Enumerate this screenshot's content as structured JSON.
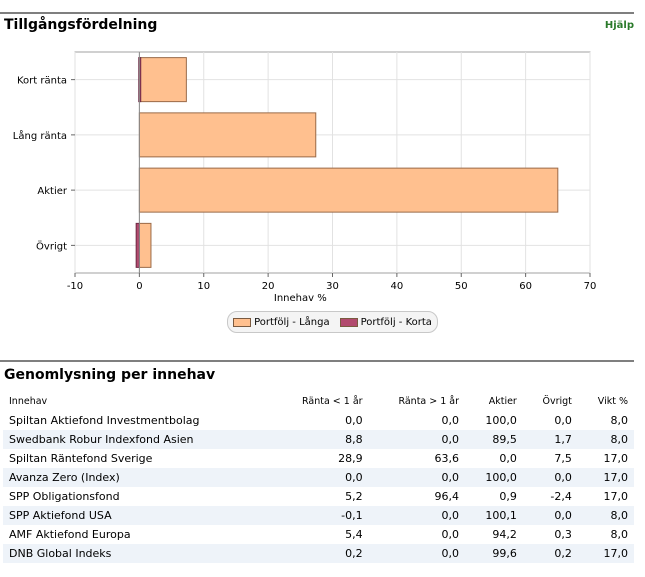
{
  "allocation": {
    "title": "Tillgångsfördelning",
    "help_label": "Hjälp"
  },
  "chart_data": {
    "type": "bar",
    "orientation": "horizontal",
    "categories": [
      "Kort ränta",
      "Lång ränta",
      "Aktier",
      "Övrigt"
    ],
    "series": [
      {
        "name": "Portfölj - Långa",
        "values": [
          7.3,
          27.4,
          65.0,
          1.8
        ],
        "color": "#ffc08f"
      },
      {
        "name": "Portfölj - Korta",
        "values": [
          -0.1,
          0.0,
          0.0,
          -0.5
        ],
        "color": "#b24a6e"
      }
    ],
    "xlabel": "Innehav %",
    "xlim": [
      -10,
      70
    ],
    "xticks": [
      -10,
      0,
      10,
      20,
      30,
      40,
      50,
      60,
      70
    ],
    "grid": true,
    "legend": "bottom"
  },
  "holdings": {
    "title": "Genomlysning per innehav",
    "columns": [
      "Innehav",
      "Ränta < 1 år",
      "Ränta > 1 år",
      "Aktier",
      "Övrigt",
      "Vikt %"
    ],
    "rows": [
      [
        "Spiltan Aktiefond Investmentbolag",
        "0,0",
        "0,0",
        "100,0",
        "0,0",
        "8,0"
      ],
      [
        "Swedbank Robur Indexfond Asien",
        "8,8",
        "0,0",
        "89,5",
        "1,7",
        "8,0"
      ],
      [
        "Spiltan Räntefond Sverige",
        "28,9",
        "63,6",
        "0,0",
        "7,5",
        "17,0"
      ],
      [
        "Avanza Zero (Index)",
        "0,0",
        "0,0",
        "100,0",
        "0,0",
        "17,0"
      ],
      [
        "SPP Obligationsfond",
        "5,2",
        "96,4",
        "0,9",
        "-2,4",
        "17,0"
      ],
      [
        "SPP Aktiefond USA",
        "-0,1",
        "0,0",
        "100,1",
        "0,0",
        "8,0"
      ],
      [
        "AMF Aktiefond Europa",
        "5,4",
        "0,0",
        "94,2",
        "0,3",
        "8,0"
      ],
      [
        "DNB Global Indeks",
        "0,2",
        "0,0",
        "99,6",
        "0,2",
        "17,0"
      ]
    ]
  }
}
